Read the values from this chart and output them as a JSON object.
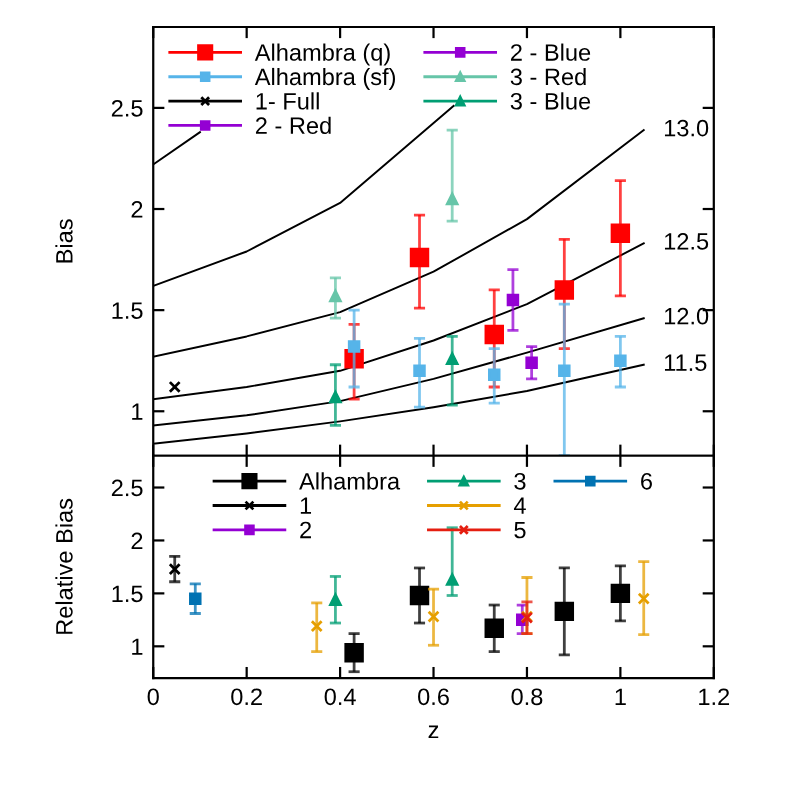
{
  "chart_data": [
    {
      "type": "scatter",
      "ylabel": "Bias",
      "xlim": [
        0,
        1.2
      ],
      "xticks": [
        0,
        0.2,
        0.4,
        0.6,
        0.8,
        1,
        1.2
      ],
      "ylim": [
        0.78,
        2.9
      ],
      "yticks": [
        1,
        1.5,
        2,
        2.5
      ],
      "tick_labels": "y",
      "legend": "top left",
      "grid": false,
      "series": [
        {
          "type": "line",
          "color": "#000000",
          "x": [
            0,
            0.1
          ],
          "values": [
            2.22,
            2.38
          ]
        },
        {
          "type": "line",
          "color": "#000000",
          "x": [
            0,
            0.2,
            0.4,
            0.643
          ],
          "values": [
            1.62,
            1.79,
            2.03,
            2.51
          ]
        },
        {
          "type": "line",
          "name": "13.0",
          "color": "#000000",
          "x": [
            0,
            0.2,
            0.4,
            0.6,
            0.8,
            1.05
          ],
          "values": [
            1.27,
            1.37,
            1.49,
            1.69,
            1.95,
            2.39
          ]
        },
        {
          "type": "line",
          "name": "12.5",
          "color": "#000000",
          "x": [
            0,
            0.2,
            0.4,
            0.6,
            0.8,
            1.05
          ],
          "values": [
            1.06,
            1.12,
            1.2,
            1.35,
            1.53,
            1.83
          ]
        },
        {
          "type": "line",
          "name": "12.0",
          "color": "#000000",
          "x": [
            0,
            0.2,
            0.4,
            0.6,
            0.8,
            1.05
          ],
          "values": [
            0.93,
            0.98,
            1.05,
            1.16,
            1.29,
            1.46
          ]
        },
        {
          "type": "line",
          "name": "11.5",
          "color": "#000000",
          "x": [
            0,
            0.2,
            0.4,
            0.6,
            0.8,
            1.05
          ],
          "values": [
            0.84,
            0.89,
            0.95,
            1.02,
            1.1,
            1.23
          ]
        },
        {
          "name": "Alhambra (q)",
          "color": "#ff0000",
          "marker": "square",
          "x": [
            0.43,
            0.57,
            0.73,
            0.88,
            1.0
          ],
          "values": [
            1.26,
            1.76,
            1.38,
            1.6,
            1.88
          ],
          "errors": [
            [
              1.06,
              1.43
            ],
            [
              1.51,
              1.97
            ],
            [
              1.12,
              1.6
            ],
            [
              1.31,
              1.85
            ],
            [
              1.57,
              2.14
            ]
          ]
        },
        {
          "name": "Alhambra (sf)",
          "color": "#56b4e9",
          "marker": "square",
          "x": [
            0.43,
            0.57,
            0.73,
            0.88,
            1.0
          ],
          "values": [
            1.32,
            1.2,
            1.18,
            1.2,
            1.25
          ],
          "errors": [
            [
              1.12,
              1.5
            ],
            [
              1.02,
              1.36
            ],
            [
              1.04,
              1.31
            ],
            [
              0.78,
              1.53
            ],
            [
              1.12,
              1.37
            ]
          ]
        },
        {
          "name": "1- Full",
          "color": "#000000",
          "marker": "cross",
          "x": [
            0.046
          ],
          "values": [
            1.12
          ]
        },
        {
          "name": "2 - Red",
          "color": "#9400d3",
          "marker": "square",
          "x": [
            0.77
          ],
          "values": [
            1.55
          ],
          "errors": [
            [
              1.4,
              1.7
            ]
          ]
        },
        {
          "name": "2 - Blue",
          "color": "#9400d3",
          "marker": "square",
          "x": [
            0.81
          ],
          "values": [
            1.24
          ],
          "errors": [
            [
              1.16,
              1.32
            ]
          ]
        },
        {
          "name": "3 - Red",
          "color": "#66c5a8",
          "marker": "triangle",
          "x": [
            0.39,
            0.64
          ],
          "values": [
            1.57,
            2.05
          ],
          "errors": [
            [
              1.46,
              1.66
            ],
            [
              1.94,
              2.39
            ]
          ]
        },
        {
          "name": "3 - Blue",
          "color": "#009e73",
          "marker": "triangle",
          "x": [
            0.39,
            0.64
          ],
          "values": [
            1.07,
            1.26
          ],
          "errors": [
            [
              0.93,
              1.23
            ],
            [
              1.03,
              1.37
            ]
          ]
        }
      ]
    },
    {
      "type": "scatter",
      "xlabel": "z",
      "ylabel": "Relative Bias",
      "xlim": [
        0,
        1.2
      ],
      "xticks": [
        0,
        0.2,
        0.4,
        0.6,
        0.8,
        1,
        1.2
      ],
      "ylim": [
        0.7,
        2.8
      ],
      "yticks": [
        1,
        1.5,
        2,
        2.5
      ],
      "legend": "top",
      "grid": false,
      "series": [
        {
          "name": "Alhambra",
          "color": "#000000",
          "marker": "square",
          "x": [
            0.43,
            0.57,
            0.73,
            0.88,
            1.0
          ],
          "values": [
            0.94,
            1.48,
            1.17,
            1.33,
            1.5
          ],
          "errors": [
            [
              0.76,
              1.12
            ],
            [
              1.22,
              1.74
            ],
            [
              0.95,
              1.39
            ],
            [
              0.92,
              1.74
            ],
            [
              1.24,
              1.76
            ]
          ]
        },
        {
          "name": "1",
          "color": "#000000",
          "marker": "cross",
          "x": [
            0.046
          ],
          "values": [
            1.73
          ],
          "errors": [
            [
              1.61,
              1.85
            ]
          ]
        },
        {
          "name": "2",
          "color": "#9400d3",
          "marker": "square",
          "x": [
            0.79
          ],
          "values": [
            1.25
          ],
          "errors": [
            [
              1.12,
              1.39
            ]
          ]
        },
        {
          "name": "3",
          "color": "#009e73",
          "marker": "triangle",
          "x": [
            0.39,
            0.64
          ],
          "values": [
            1.44,
            1.63
          ],
          "errors": [
            [
              1.22,
              1.66
            ],
            [
              1.48,
              2.12
            ]
          ]
        },
        {
          "name": "4",
          "color": "#e69f00",
          "marker": "cross",
          "x": [
            0.35,
            0.6,
            0.8,
            1.05
          ],
          "values": [
            1.19,
            1.28,
            1.28,
            1.45
          ],
          "errors": [
            [
              0.95,
              1.41
            ],
            [
              1.01,
              1.54
            ],
            [
              1.12,
              1.65
            ],
            [
              1.11,
              1.8
            ]
          ]
        },
        {
          "name": "5",
          "color": "#e51e10",
          "marker": "cross",
          "x": [
            0.8
          ],
          "values": [
            1.27
          ],
          "errors": [
            [
              1.12,
              1.42
            ]
          ]
        },
        {
          "name": "6",
          "color": "#0072b2",
          "marker": "square",
          "x": [
            0.09
          ],
          "values": [
            1.45
          ],
          "errors": [
            [
              1.31,
              1.59
            ]
          ]
        }
      ]
    }
  ]
}
